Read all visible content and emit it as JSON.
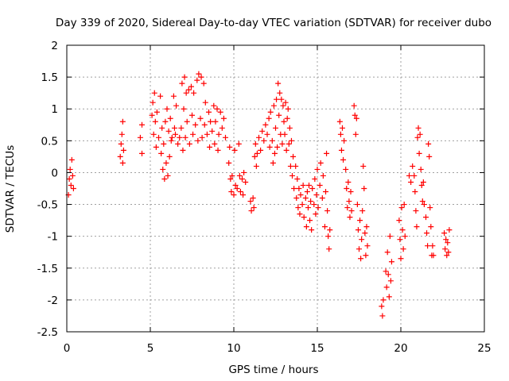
{
  "chart_data": {
    "type": "scatter",
    "title": "Day 339 of 2020, Sidereal Day-to-day VTEC variation (SDTVAR) for receiver dubo",
    "xlabel": "GPS time / hours",
    "ylabel": "SDTVAR / TECUs",
    "xlim": [
      0,
      25
    ],
    "ylim": [
      -2.5,
      2
    ],
    "xticks": [
      "0",
      "5",
      "10",
      "15",
      "20",
      "25"
    ],
    "xtick_values": [
      0,
      5,
      10,
      15,
      20,
      25
    ],
    "yticks": [
      "2",
      "1.5",
      "1",
      "0.5",
      "0",
      "-0.5",
      "-1",
      "-1.5",
      "-2",
      "-2.5"
    ],
    "ytick_values": [
      2,
      1.5,
      1,
      0.5,
      0,
      -0.5,
      -1,
      -1.5,
      -2,
      -2.5
    ],
    "grid": true,
    "marker": "plus",
    "color": "#ff0000",
    "series": [
      {
        "name": "SDTVAR",
        "points": [
          [
            0.1,
            -0.35
          ],
          [
            0.15,
            -0.1
          ],
          [
            0.2,
            0.05
          ],
          [
            0.25,
            -0.2
          ],
          [
            0.3,
            0.2
          ],
          [
            0.35,
            -0.05
          ],
          [
            0.4,
            -0.25
          ],
          [
            3.2,
            0.25
          ],
          [
            3.25,
            0.45
          ],
          [
            3.3,
            0.6
          ],
          [
            3.35,
            0.8
          ],
          [
            3.35,
            0.15
          ],
          [
            3.4,
            0.35
          ],
          [
            4.4,
            0.55
          ],
          [
            4.5,
            0.3
          ],
          [
            4.5,
            0.75
          ],
          [
            5.1,
            0.9
          ],
          [
            5.15,
            1.1
          ],
          [
            5.2,
            0.6
          ],
          [
            5.25,
            1.25
          ],
          [
            5.3,
            0.8
          ],
          [
            5.35,
            0.4
          ],
          [
            5.4,
            0.95
          ],
          [
            5.5,
            0.55
          ],
          [
            5.6,
            1.2
          ],
          [
            5.65,
            0.3
          ],
          [
            5.7,
            0.7
          ],
          [
            5.75,
            0.05
          ],
          [
            5.8,
            0.45
          ],
          [
            5.85,
            -0.1
          ],
          [
            5.9,
            0.8
          ],
          [
            5.95,
            0.15
          ],
          [
            6.0,
            1.0
          ],
          [
            6.05,
            -0.05
          ],
          [
            6.1,
            0.65
          ],
          [
            6.15,
            0.25
          ],
          [
            6.2,
            0.85
          ],
          [
            6.25,
            0.5
          ],
          [
            6.3,
            0.55
          ],
          [
            6.4,
            1.2
          ],
          [
            6.45,
            0.7
          ],
          [
            6.5,
            0.6
          ],
          [
            6.55,
            1.05
          ],
          [
            6.65,
            0.45
          ],
          [
            6.75,
            0.55
          ],
          [
            6.85,
            0.7
          ],
          [
            6.9,
            1.4
          ],
          [
            6.95,
            0.35
          ],
          [
            7.0,
            1.0
          ],
          [
            7.05,
            1.5
          ],
          [
            7.1,
            0.55
          ],
          [
            7.15,
            1.25
          ],
          [
            7.2,
            0.8
          ],
          [
            7.3,
            1.3
          ],
          [
            7.35,
            0.45
          ],
          [
            7.45,
            1.35
          ],
          [
            7.5,
            0.9
          ],
          [
            7.55,
            0.6
          ],
          [
            7.6,
            1.25
          ],
          [
            7.7,
            0.75
          ],
          [
            7.8,
            1.45
          ],
          [
            7.85,
            0.5
          ],
          [
            7.9,
            1.55
          ],
          [
            8.0,
            0.85
          ],
          [
            8.05,
            1.5
          ],
          [
            8.1,
            0.55
          ],
          [
            8.2,
            1.4
          ],
          [
            8.25,
            0.75
          ],
          [
            8.3,
            1.1
          ],
          [
            8.4,
            0.6
          ],
          [
            8.5,
            0.95
          ],
          [
            8.55,
            0.4
          ],
          [
            8.6,
            0.8
          ],
          [
            8.7,
            0.65
          ],
          [
            8.8,
            1.05
          ],
          [
            8.85,
            0.45
          ],
          [
            8.9,
            0.8
          ],
          [
            9.0,
            1.0
          ],
          [
            9.05,
            0.35
          ],
          [
            9.1,
            0.6
          ],
          [
            9.2,
            0.95
          ],
          [
            9.3,
            0.7
          ],
          [
            9.4,
            0.85
          ],
          [
            9.5,
            0.55
          ],
          [
            9.7,
            0.15
          ],
          [
            9.75,
            0.4
          ],
          [
            9.8,
            -0.1
          ],
          [
            9.85,
            -0.3
          ],
          [
            9.9,
            -0.05
          ],
          [
            10.0,
            -0.35
          ],
          [
            10.05,
            0.35
          ],
          [
            10.1,
            -0.2
          ],
          [
            10.2,
            -0.25
          ],
          [
            10.3,
            0.45
          ],
          [
            10.35,
            -0.05
          ],
          [
            10.4,
            -0.3
          ],
          [
            10.5,
            -0.1
          ],
          [
            10.55,
            -0.35
          ],
          [
            10.6,
            0.0
          ],
          [
            10.7,
            -0.15
          ],
          [
            11.0,
            -0.45
          ],
          [
            11.05,
            -0.6
          ],
          [
            11.15,
            -0.4
          ],
          [
            11.2,
            -0.55
          ],
          [
            11.25,
            0.25
          ],
          [
            11.3,
            0.45
          ],
          [
            11.35,
            0.1
          ],
          [
            11.4,
            0.3
          ],
          [
            11.5,
            0.55
          ],
          [
            11.6,
            0.35
          ],
          [
            11.7,
            0.65
          ],
          [
            11.8,
            0.5
          ],
          [
            11.9,
            0.75
          ],
          [
            12.0,
            0.6
          ],
          [
            12.1,
            0.85
          ],
          [
            12.15,
            0.4
          ],
          [
            12.2,
            0.95
          ],
          [
            12.3,
            0.5
          ],
          [
            12.35,
            0.15
          ],
          [
            12.4,
            1.05
          ],
          [
            12.45,
            0.3
          ],
          [
            12.5,
            0.7
          ],
          [
            12.55,
            1.15
          ],
          [
            12.6,
            0.4
          ],
          [
            12.65,
            1.4
          ],
          [
            12.7,
            0.9
          ],
          [
            12.75,
            1.25
          ],
          [
            12.8,
            0.6
          ],
          [
            12.85,
            1.15
          ],
          [
            12.9,
            0.45
          ],
          [
            12.95,
            1.05
          ],
          [
            13.0,
            0.8
          ],
          [
            13.05,
            0.6
          ],
          [
            13.1,
            1.1
          ],
          [
            13.15,
            0.35
          ],
          [
            13.2,
            0.85
          ],
          [
            13.25,
            1.0
          ],
          [
            13.3,
            0.45
          ],
          [
            13.35,
            0.7
          ],
          [
            13.4,
            0.1
          ],
          [
            13.45,
            0.5
          ],
          [
            13.5,
            -0.05
          ],
          [
            13.55,
            0.25
          ],
          [
            13.6,
            -0.25
          ],
          [
            13.7,
            0.1
          ],
          [
            13.75,
            -0.4
          ],
          [
            13.8,
            -0.1
          ],
          [
            13.85,
            -0.55
          ],
          [
            13.9,
            -0.25
          ],
          [
            13.95,
            -0.65
          ],
          [
            14.0,
            -0.35
          ],
          [
            14.1,
            -0.5
          ],
          [
            14.15,
            -0.2
          ],
          [
            14.2,
            -0.7
          ],
          [
            14.3,
            -0.4
          ],
          [
            14.35,
            -0.85
          ],
          [
            14.4,
            -0.3
          ],
          [
            14.45,
            -0.55
          ],
          [
            14.5,
            -0.2
          ],
          [
            14.55,
            -0.75
          ],
          [
            14.6,
            -0.45
          ],
          [
            14.65,
            -0.9
          ],
          [
            14.7,
            -0.25
          ],
          [
            14.8,
            -0.5
          ],
          [
            14.85,
            -0.1
          ],
          [
            14.9,
            -0.65
          ],
          [
            14.95,
            -0.35
          ],
          [
            15.0,
            0.05
          ],
          [
            15.05,
            -0.55
          ],
          [
            15.15,
            -0.2
          ],
          [
            15.2,
            0.15
          ],
          [
            15.3,
            -0.4
          ],
          [
            15.35,
            -0.05
          ],
          [
            15.45,
            -0.85
          ],
          [
            15.5,
            -0.3
          ],
          [
            15.55,
            0.3
          ],
          [
            15.6,
            -0.6
          ],
          [
            15.65,
            -1.0
          ],
          [
            15.7,
            -1.2
          ],
          [
            15.75,
            -0.9
          ],
          [
            16.35,
            0.8
          ],
          [
            16.4,
            0.6
          ],
          [
            16.45,
            0.35
          ],
          [
            16.5,
            0.7
          ],
          [
            16.55,
            0.2
          ],
          [
            16.6,
            0.5
          ],
          [
            16.7,
            0.05
          ],
          [
            16.75,
            -0.25
          ],
          [
            16.8,
            -0.55
          ],
          [
            16.85,
            -0.15
          ],
          [
            16.9,
            -0.45
          ],
          [
            16.95,
            -0.7
          ],
          [
            17.0,
            -0.3
          ],
          [
            17.05,
            -0.6
          ],
          [
            17.2,
            1.05
          ],
          [
            17.25,
            0.9
          ],
          [
            17.3,
            0.6
          ],
          [
            17.35,
            0.85
          ],
          [
            17.4,
            -0.5
          ],
          [
            17.45,
            -0.9
          ],
          [
            17.5,
            -1.2
          ],
          [
            17.55,
            -0.75
          ],
          [
            17.6,
            -1.35
          ],
          [
            17.65,
            -1.05
          ],
          [
            17.7,
            -0.6
          ],
          [
            17.75,
            0.1
          ],
          [
            17.8,
            -0.25
          ],
          [
            17.85,
            -0.95
          ],
          [
            17.9,
            -1.3
          ],
          [
            17.95,
            -0.85
          ],
          [
            18.0,
            -1.15
          ],
          [
            18.85,
            -2.1
          ],
          [
            18.9,
            -2.25
          ],
          [
            18.95,
            -2.0
          ],
          [
            19.1,
            -1.55
          ],
          [
            19.15,
            -1.8
          ],
          [
            19.2,
            -1.25
          ],
          [
            19.25,
            -1.6
          ],
          [
            19.3,
            -1.95
          ],
          [
            19.35,
            -1.0
          ],
          [
            19.4,
            -1.7
          ],
          [
            19.45,
            -1.4
          ],
          [
            19.9,
            -0.75
          ],
          [
            19.95,
            -1.05
          ],
          [
            20.0,
            -1.35
          ],
          [
            20.05,
            -0.55
          ],
          [
            20.1,
            -0.9
          ],
          [
            20.15,
            -1.2
          ],
          [
            20.2,
            -0.5
          ],
          [
            20.25,
            -1.0
          ],
          [
            20.5,
            -0.05
          ],
          [
            20.6,
            -0.15
          ],
          [
            20.7,
            0.1
          ],
          [
            20.8,
            -0.05
          ],
          [
            20.85,
            -0.3
          ],
          [
            20.9,
            -0.6
          ],
          [
            20.95,
            -0.85
          ],
          [
            21.0,
            0.55
          ],
          [
            21.05,
            0.7
          ],
          [
            21.1,
            0.3
          ],
          [
            21.15,
            0.6
          ],
          [
            21.2,
            0.05
          ],
          [
            21.25,
            -0.2
          ],
          [
            21.3,
            -0.45
          ],
          [
            21.35,
            -0.15
          ],
          [
            21.4,
            -0.5
          ],
          [
            21.5,
            -0.7
          ],
          [
            21.55,
            -0.95
          ],
          [
            21.6,
            -1.15
          ],
          [
            21.65,
            0.45
          ],
          [
            21.7,
            0.25
          ],
          [
            21.75,
            -0.55
          ],
          [
            21.8,
            -0.85
          ],
          [
            21.85,
            -1.3
          ],
          [
            21.9,
            -1.15
          ],
          [
            21.95,
            -1.3
          ],
          [
            22.6,
            -0.95
          ],
          [
            22.65,
            -1.2
          ],
          [
            22.7,
            -1.05
          ],
          [
            22.75,
            -1.3
          ],
          [
            22.8,
            -1.1
          ],
          [
            22.85,
            -1.25
          ],
          [
            22.9,
            -0.9
          ]
        ]
      }
    ]
  }
}
